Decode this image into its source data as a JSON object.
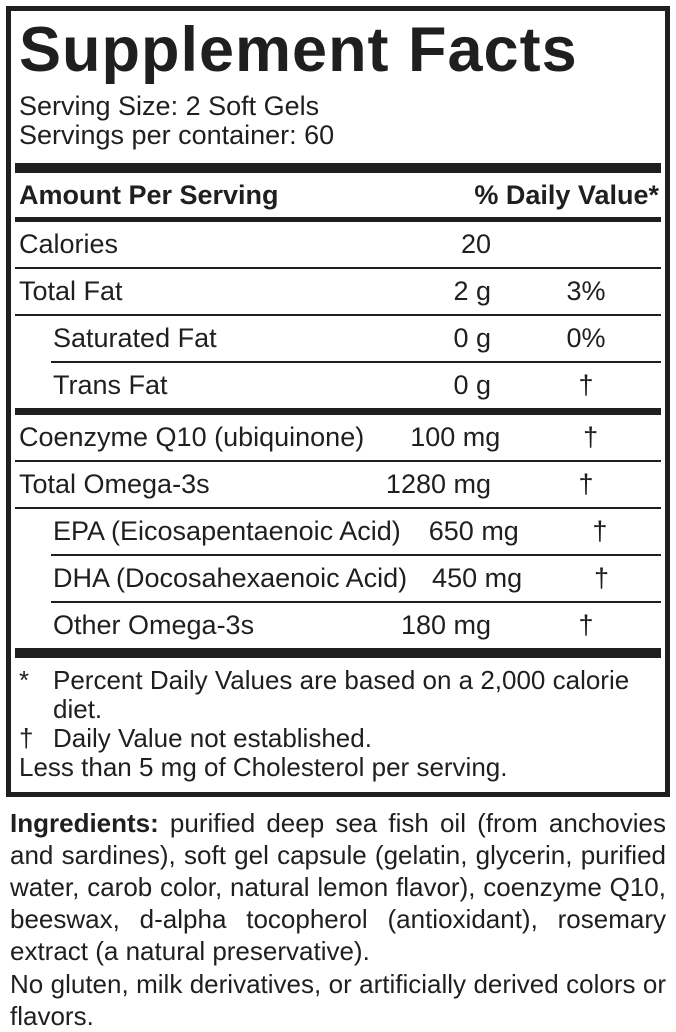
{
  "colors": {
    "ink": "#211e1e",
    "background": "#ffffff"
  },
  "panel": {
    "title": "Supplement Facts",
    "serving_size": "Serving Size: 2 Soft Gels",
    "servings_per_container": "Servings per container: 60",
    "header": {
      "amount_label": "Amount Per Serving",
      "dv_label": "% Daily Value*"
    },
    "rows": [
      {
        "name": "Calories",
        "amount": "20",
        "dv": ""
      },
      {
        "name": "Total Fat",
        "amount": "2 g",
        "dv": "3%"
      },
      {
        "name": "Saturated Fat",
        "amount": "0 g",
        "dv": "0%"
      },
      {
        "name": "Trans Fat",
        "amount": "0 g",
        "dv": "†"
      },
      {
        "name": "Coenzyme Q10 (ubiquinone)",
        "amount": "100 mg",
        "dv": "†"
      },
      {
        "name": "Total Omega-3s",
        "amount": "1280 mg",
        "dv": "†"
      },
      {
        "name": "EPA (Eicosapentaenoic Acid)",
        "amount": "650 mg",
        "dv": "†"
      },
      {
        "name": "DHA (Docosahexaenoic Acid)",
        "amount": "450 mg",
        "dv": "†"
      },
      {
        "name": "Other Omega-3s",
        "amount": "180 mg",
        "dv": "†"
      }
    ],
    "footnotes": [
      {
        "symbol": "*",
        "text": "Percent Daily Values are based on a 2,000 calorie diet."
      },
      {
        "symbol": "†",
        "text": "Daily Value not established."
      },
      {
        "symbol": "",
        "text": "Less than 5 mg of Cholesterol per serving."
      }
    ]
  },
  "ingredients": {
    "label": "Ingredients:",
    "text": " purified deep sea fish oil (from anchovies and sardines), soft gel capsule (gelatin, glycerin, purified water, carob color, natural lemon flavor), coenzyme Q10, beeswax, d-alpha tocopherol (antioxidant), rosemary extract (a natural preservative)."
  },
  "allergen_note": "No gluten, milk derivatives, or artificially derived colors or flavors."
}
